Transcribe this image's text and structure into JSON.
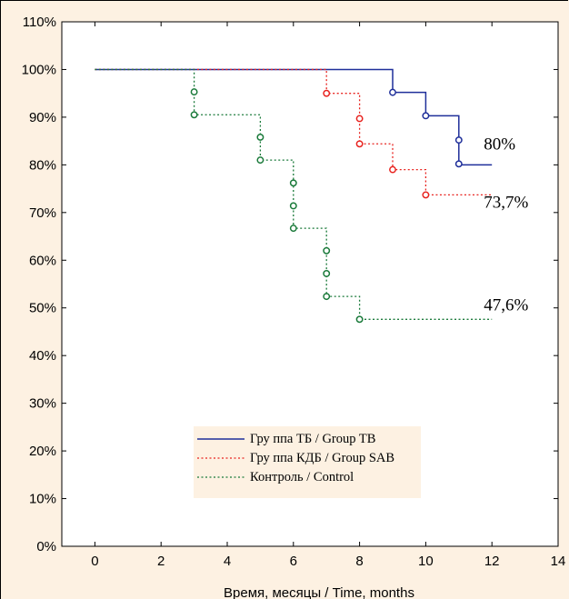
{
  "chart_data": {
    "type": "line",
    "xlabel": "Время, месяцы  / Time, months",
    "ylabel": "",
    "xlim": [
      -1,
      14
    ],
    "ylim": [
      0,
      110
    ],
    "x_ticks": [
      0,
      2,
      4,
      6,
      8,
      10,
      12,
      14
    ],
    "y_ticks": [
      0,
      10,
      20,
      30,
      40,
      50,
      60,
      70,
      80,
      90,
      100,
      110
    ],
    "y_tick_suffix": "%",
    "grid": false,
    "legend_position": "bottom-left",
    "series": [
      {
        "name": "Гру ппа ТБ / Group TB",
        "color": "#1f2f9a",
        "line_style": "solid",
        "steps": [
          [
            0,
            100
          ],
          [
            9,
            95.2
          ],
          [
            10,
            90.3
          ],
          [
            11,
            80
          ],
          [
            12,
            80
          ]
        ],
        "censored": [
          [
            9,
            95.2
          ],
          [
            10,
            90.3
          ],
          [
            11,
            85.2
          ],
          [
            11,
            80.2
          ]
        ]
      },
      {
        "name": "Гру ппа КДБ / Group SAB",
        "color": "#e8231f",
        "line_style": "dotted",
        "steps": [
          [
            0,
            100
          ],
          [
            7,
            95
          ],
          [
            8,
            84.4
          ],
          [
            9,
            79
          ],
          [
            10,
            73.7
          ],
          [
            12,
            73.7
          ]
        ],
        "censored": [
          [
            7,
            95
          ],
          [
            8,
            89.7
          ],
          [
            8,
            84.4
          ],
          [
            9,
            79
          ],
          [
            10,
            73.7
          ]
        ]
      },
      {
        "name": "Контроль / Control",
        "color": "#1a7a3a",
        "line_style": "dotted",
        "steps": [
          [
            0,
            100
          ],
          [
            3,
            90.5
          ],
          [
            5,
            81
          ],
          [
            6,
            66.7
          ],
          [
            7,
            52.4
          ],
          [
            8,
            47.6
          ],
          [
            12,
            47.6
          ]
        ],
        "censored": [
          [
            3,
            95.3
          ],
          [
            3,
            90.5
          ],
          [
            5,
            85.8
          ],
          [
            5,
            81
          ],
          [
            6,
            76.2
          ],
          [
            6,
            71.4
          ],
          [
            6,
            66.7
          ],
          [
            7,
            62
          ],
          [
            7,
            57.2
          ],
          [
            7,
            52.4
          ],
          [
            8,
            47.6
          ]
        ]
      }
    ],
    "annotations": [
      {
        "text": "80%",
        "x": 12,
        "y": 80
      },
      {
        "text": "73,7%",
        "x": 12,
        "y": 73.7
      },
      {
        "text": "47,6%",
        "x": 12,
        "y": 47.6
      }
    ]
  },
  "colors": {
    "background": "#fdf1e2",
    "plot_area": "#ffffff"
  }
}
